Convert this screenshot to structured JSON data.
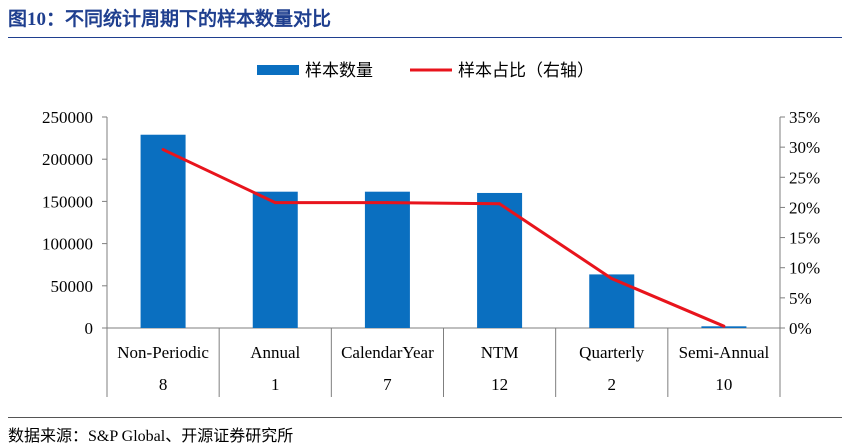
{
  "title": "图10：不同统计周期下的样本数量对比",
  "source": "数据来源：S&P Global、开源证券研究所",
  "colors": {
    "bar": "#0a6fc0",
    "line": "#e8141c",
    "title": "#1f3f8f"
  },
  "chart_data": {
    "type": "bar",
    "categories": [
      "Non-Periodic",
      "Annual",
      "CalendarYear",
      "NTM",
      "Quarterly",
      "Semi-Annual"
    ],
    "category_codes": [
      "8",
      "1",
      "7",
      "12",
      "2",
      "10"
    ],
    "legend_position": "top-center",
    "grid": false,
    "series": [
      {
        "name": "样本数量",
        "type": "bar",
        "axis": "left",
        "values": [
          229000,
          161500,
          161500,
          160000,
          63500,
          2000
        ]
      },
      {
        "name": "样本占比（右轴）",
        "type": "line",
        "axis": "right",
        "values": [
          29.6,
          20.8,
          20.8,
          20.6,
          8.2,
          0.3
        ]
      }
    ],
    "yleft": {
      "ylim": [
        0,
        250000
      ],
      "ticks": [
        "0",
        "50000",
        "100000",
        "150000",
        "200000",
        "250000"
      ]
    },
    "yright": {
      "ylim": [
        0,
        35
      ],
      "ticks": [
        "0%",
        "5%",
        "10%",
        "15%",
        "20%",
        "25%",
        "30%",
        "35%"
      ]
    }
  }
}
